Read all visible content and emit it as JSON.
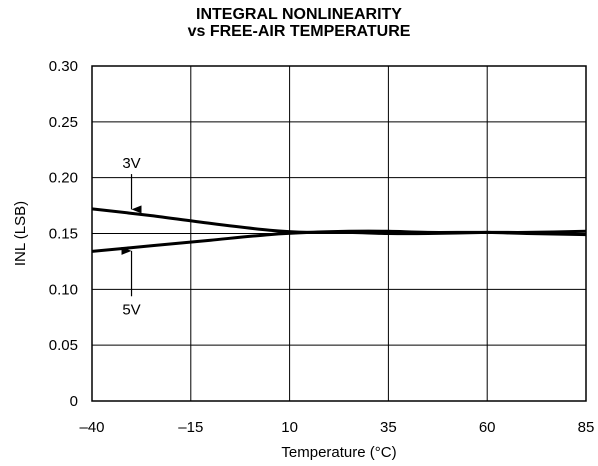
{
  "chart_data": {
    "type": "line",
    "title": [
      "INTEGRAL NONLINEARITY",
      "vs FREE-AIR TEMPERATURE"
    ],
    "xlabel": "Temperature (°C)",
    "ylabel": "INL (LSB)",
    "xlim": [
      -40,
      85
    ],
    "ylim": [
      0,
      0.3
    ],
    "grid": true,
    "x_ticks": [
      -40,
      -15,
      10,
      35,
      60,
      85
    ],
    "x_tick_labels": [
      "–40",
      "–15",
      "10",
      "35",
      "60",
      "85"
    ],
    "y_ticks": [
      0,
      0.05,
      0.1,
      0.15,
      0.2,
      0.25,
      0.3
    ],
    "y_tick_labels": [
      "0",
      "0.05",
      "0.10",
      "0.15",
      "0.20",
      "0.25",
      "0.30"
    ],
    "series": [
      {
        "name": "3V",
        "x": [
          -40,
          -25,
          -10,
          5,
          15,
          25,
          35,
          45,
          60,
          70,
          85
        ],
        "y": [
          0.172,
          0.166,
          0.159,
          0.153,
          0.151,
          0.151,
          0.15,
          0.15,
          0.151,
          0.151,
          0.152
        ]
      },
      {
        "name": "5V",
        "x": [
          -40,
          -25,
          -10,
          5,
          15,
          25,
          35,
          45,
          60,
          70,
          85
        ],
        "y": [
          0.134,
          0.139,
          0.144,
          0.149,
          0.151,
          0.152,
          0.152,
          0.151,
          0.151,
          0.15,
          0.149
        ]
      }
    ],
    "annotations": [
      {
        "text": "3V",
        "series": "3V",
        "arrow_to": [
          -30,
          0.168
        ],
        "text_at": [
          -30,
          0.205
        ]
      },
      {
        "text": "5V",
        "series": "5V",
        "arrow_to": [
          -30,
          0.138
        ],
        "text_at": [
          -30,
          0.092
        ]
      }
    ]
  }
}
